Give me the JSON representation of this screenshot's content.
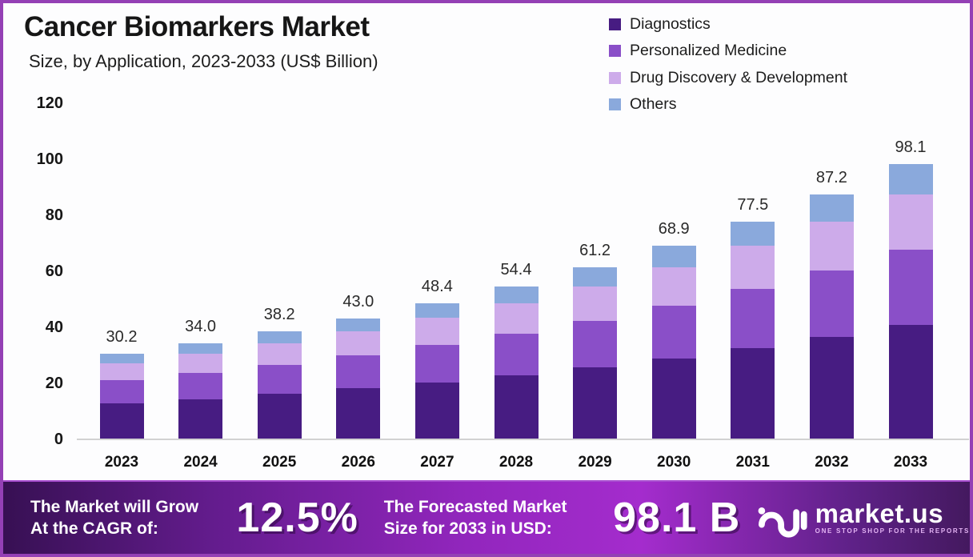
{
  "header": {
    "title": "Cancer Biomarkers Market",
    "subtitle": "Size, by Application, 2023-2033 (US$ Billion)"
  },
  "chart_data": {
    "type": "bar",
    "stacked": true,
    "title": "Cancer Biomarkers Market Size, by Application, 2023-2033 (US$ Billion)",
    "categories": [
      "2023",
      "2024",
      "2025",
      "2026",
      "2027",
      "2028",
      "2029",
      "2030",
      "2031",
      "2032",
      "2033"
    ],
    "series": [
      {
        "name": "Diagnostics",
        "color": "#471c82",
        "values": [
          12.5,
          14.1,
          15.9,
          17.9,
          20.1,
          22.6,
          25.4,
          28.6,
          32.2,
          36.2,
          40.7
        ]
      },
      {
        "name": "Personalized Medicine",
        "color": "#8a4fc8",
        "values": [
          8.3,
          9.3,
          10.4,
          11.7,
          13.2,
          14.9,
          16.7,
          18.8,
          21.2,
          23.8,
          26.8
        ]
      },
      {
        "name": "Drug Discovery & Development",
        "color": "#cdabea",
        "values": [
          6.0,
          6.8,
          7.6,
          8.6,
          9.7,
          10.9,
          12.2,
          13.8,
          15.5,
          17.4,
          19.6
        ]
      },
      {
        "name": "Others",
        "color": "#8aa9dc",
        "values": [
          3.4,
          3.8,
          4.3,
          4.8,
          5.4,
          6.0,
          6.9,
          7.7,
          8.6,
          9.8,
          11.0
        ]
      }
    ],
    "totals_display": [
      "30.2",
      "34.0",
      "38.2",
      "43.0",
      "48.4",
      "54.4",
      "61.2",
      "68.9",
      "77.5",
      "87.2",
      "98.1"
    ],
    "y_ticks": [
      "120",
      "100",
      "80",
      "60",
      "40",
      "20",
      "0"
    ],
    "ylim": [
      0,
      120
    ],
    "grid": false,
    "legend_position": "top-right"
  },
  "footer": {
    "cagr_label_line1": "The Market will Grow",
    "cagr_label_line2": "At the CAGR of:",
    "cagr_value": "12.5%",
    "forecast_label_line1": "The Forecasted Market",
    "forecast_label_line2": "Size for 2033 in USD:",
    "forecast_value": "98.1 B",
    "brand": "market.us",
    "brand_tagline": "ONE STOP SHOP FOR THE REPORTS"
  },
  "colors": {
    "page_border": "#9440b5",
    "footer_gradient": [
      "#371053",
      "#9226bd",
      "#a42ccd",
      "#44195f"
    ],
    "axis_line": "#d2d2d2",
    "text": "#161616"
  }
}
